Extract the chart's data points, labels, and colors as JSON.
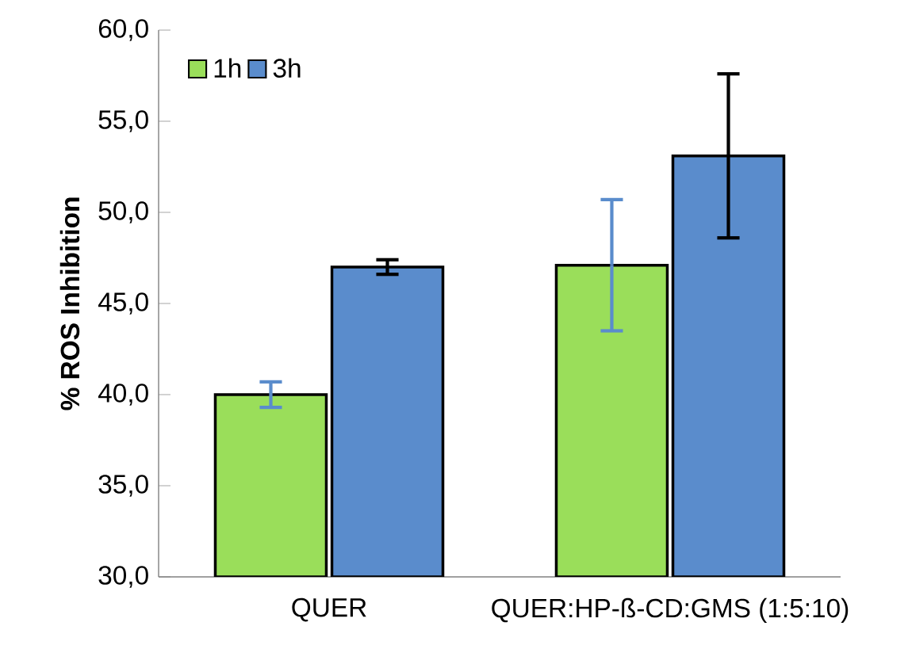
{
  "chart_data": {
    "type": "bar",
    "ylabel": "% ROS Inhibition",
    "categories": [
      "QUER",
      "QUER:HP-ß-CD:GMS (1:5:10)"
    ],
    "series": [
      {
        "name": "1h",
        "color": "#9ade5a",
        "values": [
          40.0,
          47.1
        ],
        "errors": [
          0.7,
          3.6
        ]
      },
      {
        "name": "3h",
        "color": "#5a8ccc",
        "values": [
          47.0,
          53.1
        ],
        "errors": [
          0.4,
          4.5
        ]
      }
    ],
    "ylim": [
      30,
      60
    ],
    "yticks": [
      {
        "value": 30,
        "label": "30,0"
      },
      {
        "value": 35,
        "label": "35,0"
      },
      {
        "value": 40,
        "label": "40,0"
      },
      {
        "value": 45,
        "label": "45,0"
      },
      {
        "value": 50,
        "label": "50,0"
      },
      {
        "value": 55,
        "label": "55,0"
      },
      {
        "value": 60,
        "label": "60,0"
      }
    ],
    "grid": false,
    "legend": "top left"
  }
}
